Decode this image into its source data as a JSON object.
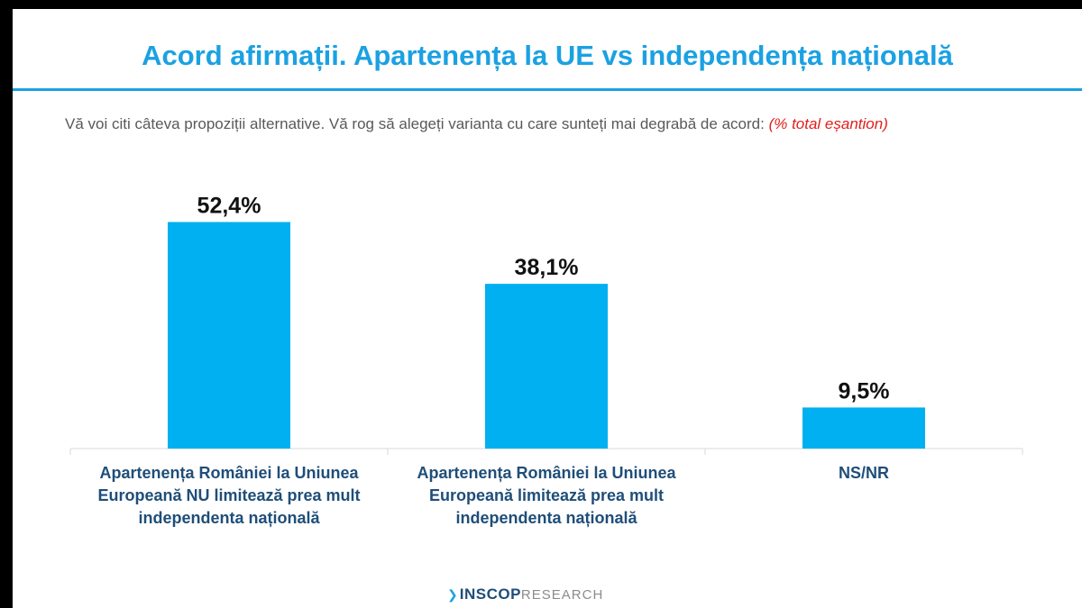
{
  "title": "Acord afirmații. Apartenența la UE vs independența națională",
  "subtitle": {
    "text": "Vă voi citi câteva propoziții alternative. Vă rog să alegeți varianta cu care sunteți mai degrabă de acord:",
    "note": "(% total eșantion)"
  },
  "chart_data": {
    "type": "bar",
    "title": "Acord afirmații. Apartenența la UE vs independența națională",
    "categories": [
      "Apartenența României la Uniunea Europeană NU limitează prea mult independenta națională",
      "Apartenența României la Uniunea Europeană limitează prea mult independenta națională",
      "NS/NR"
    ],
    "values": [
      52.4,
      38.1,
      9.5
    ],
    "value_labels": [
      "52,4%",
      "38,1%",
      "9,5%"
    ],
    "unit": "%",
    "ylim": [
      0,
      60
    ],
    "grid": false,
    "bar_color": "#00b0f0"
  },
  "footer": {
    "brand": "INSCOP",
    "sub": "RESEARCH"
  },
  "colors": {
    "title": "#1ba1e2",
    "bar": "#00b0f0",
    "category_text": "#1f4e79",
    "note": "#e0201b"
  }
}
